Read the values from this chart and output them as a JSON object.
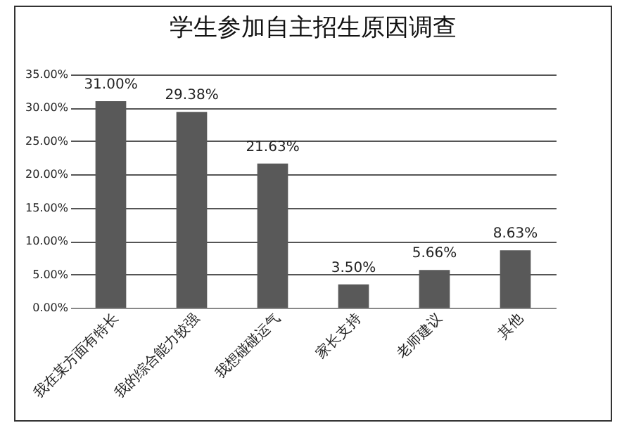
{
  "chart_data": {
    "type": "bar",
    "title": "学生参加自主招生原因调查",
    "categories": [
      "我在某方面有特长",
      "我的综合能力较强",
      "我想碰碰运气",
      "家长支持",
      "老师建议",
      "其他"
    ],
    "values": [
      31.0,
      29.38,
      21.63,
      3.5,
      5.66,
      8.63
    ],
    "value_labels": [
      "31.00%",
      "29.38%",
      "21.63%",
      "3.50%",
      "5.66%",
      "8.63%"
    ],
    "color": "#595959",
    "ylim": [
      0,
      35
    ],
    "yticks": [
      {
        "value": 0,
        "label": "0.00%"
      },
      {
        "value": 5,
        "label": "5.00%"
      },
      {
        "value": 10,
        "label": "10.00%"
      },
      {
        "value": 15,
        "label": "15.00%"
      },
      {
        "value": 20,
        "label": "20.00%"
      },
      {
        "value": 25,
        "label": "25.00%"
      },
      {
        "value": 30,
        "label": "30.00%"
      },
      {
        "value": 35,
        "label": "35.00%"
      }
    ],
    "grid": "y"
  }
}
